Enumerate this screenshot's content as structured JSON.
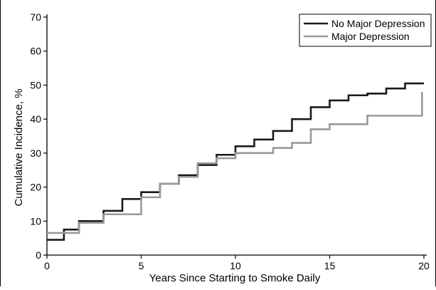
{
  "chart_data": {
    "type": "line",
    "step": true,
    "title": "",
    "xlabel": "Years Since Starting to Smoke Daily",
    "ylabel": "Cumulative Incidence, %",
    "xlim": [
      0,
      20
    ],
    "ylim": [
      0,
      70
    ],
    "xticks": [
      0,
      5,
      10,
      15,
      20
    ],
    "yticks": [
      0,
      10,
      20,
      30,
      40,
      50,
      60,
      70
    ],
    "grid": false,
    "legend_position": "top-right",
    "series": [
      {
        "name": "No Major Depression",
        "color": "#1a1a1a",
        "x": [
          0,
          0.9,
          1.7,
          3,
          4,
          5,
          6,
          7,
          8,
          9,
          10,
          11,
          12,
          13,
          14,
          15,
          16,
          17,
          18,
          19,
          20
        ],
        "y": [
          4.5,
          7.5,
          10,
          13,
          16.5,
          18.5,
          21,
          23.5,
          26.5,
          29.5,
          32,
          34,
          36.5,
          40,
          43.5,
          45.5,
          47,
          47.5,
          49,
          50.5,
          50.5
        ]
      },
      {
        "name": "Major Depression",
        "color": "#999999",
        "x": [
          0,
          1,
          1.7,
          3,
          4,
          5,
          6,
          7,
          8,
          9,
          10,
          11,
          12,
          13,
          14,
          15,
          16,
          17,
          18,
          19,
          19.9
        ],
        "y": [
          6.5,
          6.5,
          9.5,
          12,
          12,
          17,
          21,
          23,
          27,
          28.5,
          30,
          30,
          31.5,
          33,
          37,
          38.5,
          38.5,
          41,
          41,
          41,
          48
        ]
      }
    ]
  }
}
